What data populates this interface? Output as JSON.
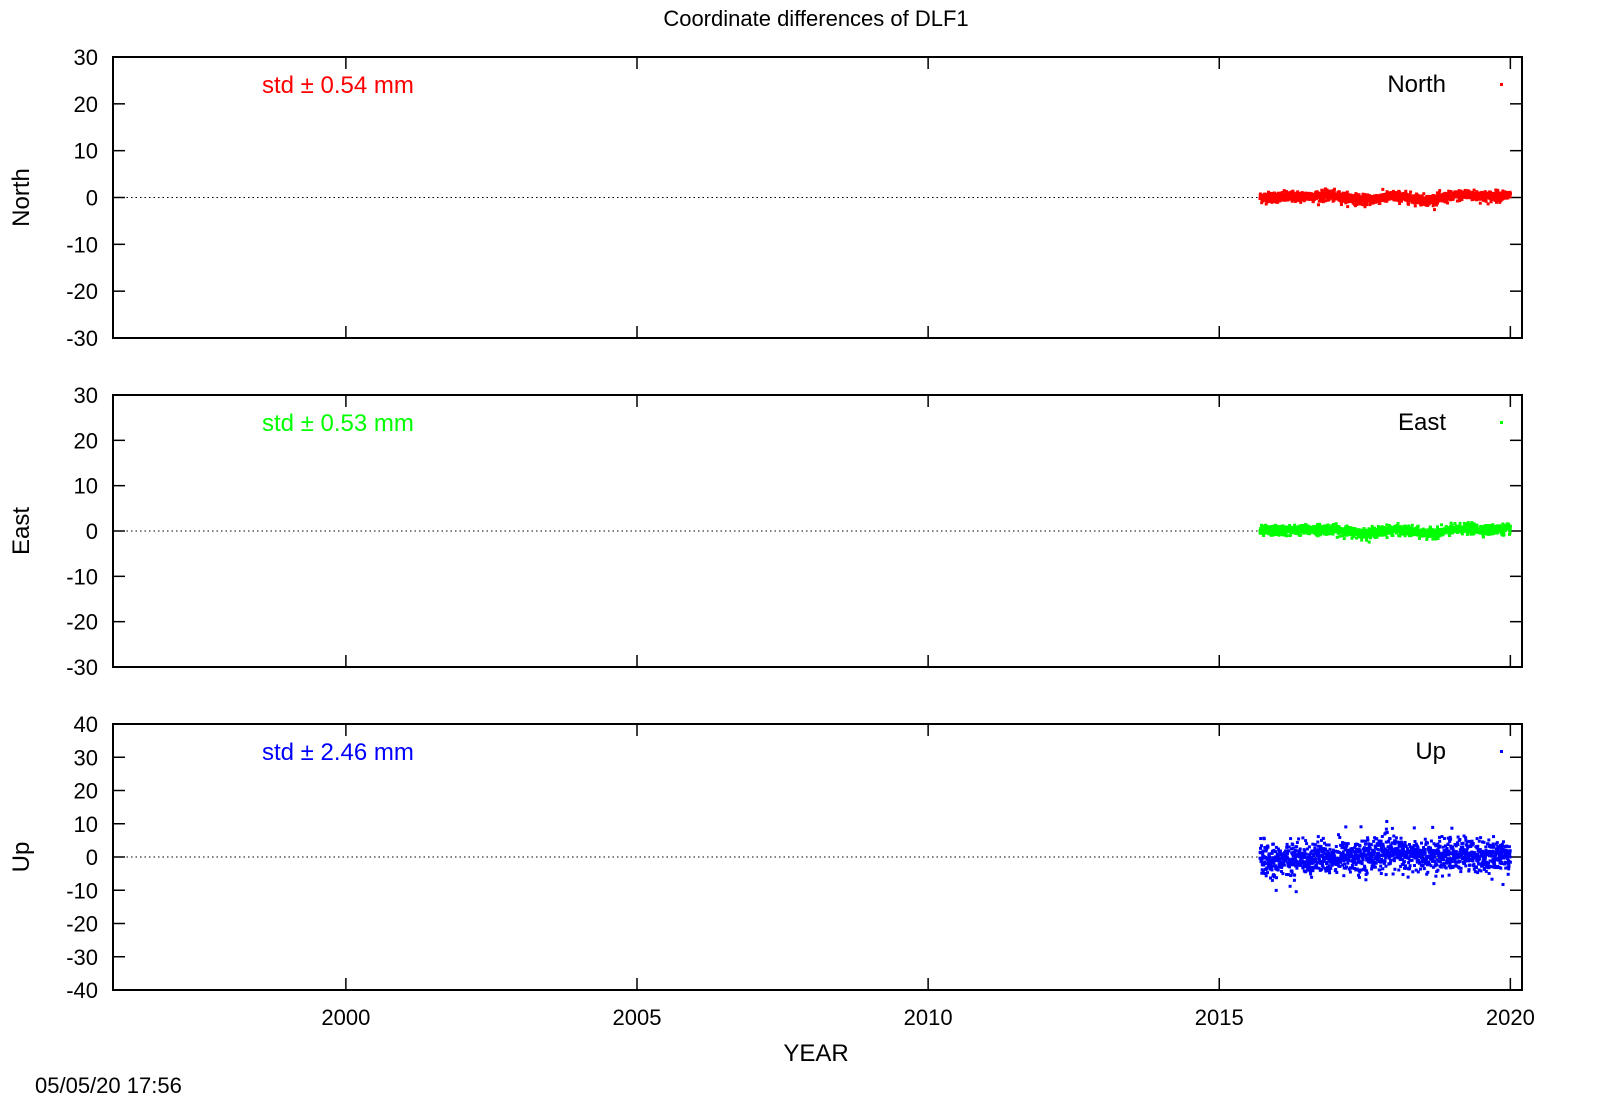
{
  "chart_data": {
    "type": "scatter",
    "title": "Coordinate differences of DLF1",
    "xlabel": "YEAR",
    "xlim": [
      1996,
      2020.2
    ],
    "xticks": [
      2000,
      2005,
      2010,
      2015,
      2020
    ],
    "timestamp": "05/05/20 17:56",
    "data_start": 2015.7,
    "data_end": 2020.0,
    "panels": [
      {
        "ylabel": "North",
        "series_name": "North",
        "color": "#ff0000",
        "std_text": "std ± 0.54 mm",
        "ylim": [
          -30,
          30
        ],
        "yticks": [
          -30,
          -20,
          -10,
          0,
          10,
          20,
          30
        ],
        "std_mm": 0.54,
        "trend": [
          [
            2015.7,
            0.0
          ],
          [
            2016.4,
            0.2
          ],
          [
            2016.9,
            0.4
          ],
          [
            2017.5,
            -0.6
          ],
          [
            2018.0,
            0.3
          ],
          [
            2018.6,
            -0.6
          ],
          [
            2019.2,
            0.6
          ],
          [
            2019.6,
            0.2
          ],
          [
            2020.0,
            0.5
          ]
        ]
      },
      {
        "ylabel": "East",
        "series_name": "East",
        "color": "#00ff00",
        "std_text": "std ± 0.53 mm",
        "ylim": [
          -30,
          30
        ],
        "yticks": [
          -30,
          -20,
          -10,
          0,
          10,
          20,
          30
        ],
        "std_mm": 0.53,
        "trend": [
          [
            2015.7,
            0.0
          ],
          [
            2016.4,
            0.2
          ],
          [
            2016.9,
            0.4
          ],
          [
            2017.5,
            -0.6
          ],
          [
            2018.0,
            0.3
          ],
          [
            2018.6,
            -0.6
          ],
          [
            2019.2,
            0.6
          ],
          [
            2019.6,
            0.2
          ],
          [
            2020.0,
            0.5
          ]
        ]
      },
      {
        "ylabel": "Up",
        "series_name": "Up",
        "color": "#0000ff",
        "std_text": "std ± 2.46 mm",
        "ylim": [
          -40,
          40
        ],
        "yticks": [
          -40,
          -30,
          -20,
          -10,
          0,
          10,
          20,
          30,
          40
        ],
        "std_mm": 2.46,
        "trend": [
          [
            2015.7,
            -1.5
          ],
          [
            2016.3,
            -0.5
          ],
          [
            2016.9,
            -0.2
          ],
          [
            2017.5,
            0.5
          ],
          [
            2018.0,
            1.5
          ],
          [
            2018.6,
            0.0
          ],
          [
            2019.2,
            0.8
          ],
          [
            2019.6,
            -0.2
          ],
          [
            2020.0,
            0.8
          ]
        ]
      }
    ]
  }
}
